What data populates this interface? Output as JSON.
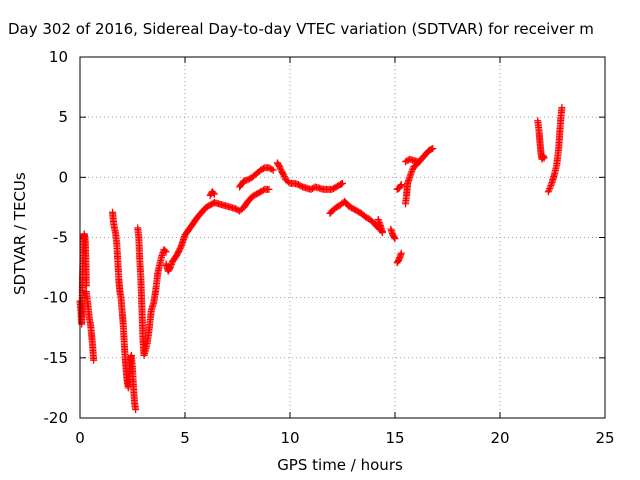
{
  "chart_data": {
    "type": "scatter",
    "title": "Day 302 of 2016, Sidereal Day-to-day VTEC variation (SDTVAR) for receiver m",
    "xlabel": "GPS time / hours",
    "ylabel": "SDTVAR / TECUs",
    "xlim": [
      0,
      25
    ],
    "ylim": [
      -20,
      10
    ],
    "xticks": [
      0,
      5,
      10,
      15,
      20,
      25
    ],
    "yticks": [
      -20,
      -15,
      -10,
      -5,
      0,
      5,
      10
    ],
    "grid": true,
    "marker": "plus",
    "color": "#ff0000",
    "series": [
      {
        "segments": [
          [
            [
              0.0,
              -10.3
            ],
            [
              0.05,
              -11.2
            ],
            [
              0.08,
              -12.2
            ],
            [
              0.1,
              -10.5
            ],
            [
              0.12,
              -8.2
            ],
            [
              0.15,
              -6.5
            ],
            [
              0.18,
              -5.2
            ],
            [
              0.2,
              -4.7
            ],
            [
              0.22,
              -4.9
            ],
            [
              0.25,
              -5.3
            ],
            [
              0.28,
              -7.0
            ],
            [
              0.3,
              -9.0
            ]
          ],
          [
            [
              0.3,
              -9.5
            ],
            [
              0.35,
              -10.2
            ],
            [
              0.4,
              -11.0
            ],
            [
              0.45,
              -11.8
            ],
            [
              0.5,
              -12.2
            ],
            [
              0.55,
              -13.0
            ],
            [
              0.6,
              -14.0
            ],
            [
              0.65,
              -15.2
            ]
          ],
          [
            [
              1.55,
              -2.9
            ],
            [
              1.6,
              -3.8
            ],
            [
              1.65,
              -4.3
            ],
            [
              1.7,
              -4.7
            ],
            [
              1.75,
              -5.5
            ],
            [
              1.8,
              -7.0
            ],
            [
              1.85,
              -8.5
            ],
            [
              1.9,
              -9.5
            ],
            [
              1.95,
              -10.0
            ],
            [
              2.0,
              -11.0
            ],
            [
              2.05,
              -12.0
            ],
            [
              2.1,
              -13.5
            ],
            [
              2.15,
              -15.0
            ],
            [
              2.2,
              -16.0
            ],
            [
              2.25,
              -17.0
            ],
            [
              2.3,
              -17.5
            ],
            [
              2.35,
              -16.8
            ],
            [
              2.4,
              -15.0
            ],
            [
              2.45,
              -14.8
            ],
            [
              2.5,
              -16.0
            ],
            [
              2.55,
              -17.5
            ],
            [
              2.6,
              -18.8
            ],
            [
              2.65,
              -19.3
            ]
          ],
          [
            [
              2.75,
              -4.2
            ],
            [
              2.8,
              -5.0
            ],
            [
              2.85,
              -7.0
            ],
            [
              2.9,
              -8.5
            ],
            [
              2.95,
              -11.0
            ],
            [
              3.0,
              -13.5
            ],
            [
              3.05,
              -14.8
            ],
            [
              3.1,
              -14.5
            ],
            [
              3.2,
              -13.8
            ],
            [
              3.3,
              -12.5
            ],
            [
              3.4,
              -11.0
            ],
            [
              3.5,
              -10.5
            ],
            [
              3.6,
              -9.5
            ],
            [
              3.7,
              -8.0
            ],
            [
              3.8,
              -7.2
            ],
            [
              3.9,
              -6.5
            ],
            [
              4.0,
              -6.0
            ],
            [
              4.1,
              -6.2
            ]
          ],
          [
            [
              4.1,
              -7.2
            ],
            [
              4.2,
              -7.8
            ],
            [
              4.3,
              -7.5
            ],
            [
              4.4,
              -7.0
            ],
            [
              4.6,
              -6.5
            ],
            [
              4.8,
              -5.8
            ],
            [
              5.0,
              -4.8
            ],
            [
              5.2,
              -4.3
            ],
            [
              5.4,
              -3.8
            ],
            [
              5.6,
              -3.3
            ],
            [
              5.8,
              -2.9
            ],
            [
              6.0,
              -2.5
            ],
            [
              6.2,
              -2.3
            ],
            [
              6.4,
              -2.1
            ]
          ],
          [
            [
              6.2,
              -1.5
            ],
            [
              6.3,
              -1.2
            ],
            [
              6.4,
              -1.4
            ]
          ],
          [
            [
              6.4,
              -2.1
            ],
            [
              6.6,
              -2.2
            ],
            [
              6.8,
              -2.3
            ],
            [
              7.0,
              -2.4
            ],
            [
              7.2,
              -2.5
            ],
            [
              7.4,
              -2.6
            ],
            [
              7.6,
              -2.8
            ],
            [
              7.8,
              -2.5
            ],
            [
              8.0,
              -2.0
            ],
            [
              8.2,
              -1.6
            ],
            [
              8.4,
              -1.4
            ],
            [
              8.6,
              -1.2
            ],
            [
              8.8,
              -1.0
            ],
            [
              9.0,
              -1.0
            ]
          ],
          [
            [
              7.6,
              -0.8
            ],
            [
              7.8,
              -0.3
            ],
            [
              8.0,
              -0.2
            ],
            [
              8.2,
              0.0
            ],
            [
              8.4,
              0.3
            ],
            [
              8.6,
              0.6
            ],
            [
              8.8,
              0.8
            ],
            [
              9.0,
              0.8
            ],
            [
              9.2,
              0.6
            ]
          ],
          [
            [
              9.4,
              1.2
            ],
            [
              9.5,
              0.9
            ],
            [
              9.6,
              0.5
            ],
            [
              9.7,
              0.2
            ],
            [
              9.8,
              -0.2
            ],
            [
              10.0,
              -0.5
            ],
            [
              10.2,
              -0.5
            ],
            [
              10.4,
              -0.6
            ],
            [
              10.6,
              -0.8
            ],
            [
              10.8,
              -0.9
            ],
            [
              11.0,
              -1.0
            ],
            [
              11.2,
              -0.8
            ],
            [
              11.4,
              -0.9
            ],
            [
              11.6,
              -1.0
            ],
            [
              11.8,
              -1.0
            ],
            [
              12.0,
              -1.0
            ],
            [
              12.2,
              -0.8
            ],
            [
              12.4,
              -0.6
            ],
            [
              12.5,
              -0.5
            ]
          ],
          [
            [
              11.9,
              -3.0
            ],
            [
              12.0,
              -2.8
            ],
            [
              12.2,
              -2.5
            ],
            [
              12.4,
              -2.3
            ],
            [
              12.6,
              -2.0
            ],
            [
              12.8,
              -2.4
            ],
            [
              13.0,
              -2.6
            ],
            [
              13.2,
              -2.8
            ],
            [
              13.4,
              -3.0
            ],
            [
              13.6,
              -3.3
            ],
            [
              13.8,
              -3.5
            ],
            [
              14.0,
              -3.8
            ],
            [
              14.2,
              -4.2
            ],
            [
              14.4,
              -4.5
            ]
          ],
          [
            [
              14.2,
              -3.5
            ],
            [
              14.3,
              -4.0
            ],
            [
              14.4,
              -4.6
            ]
          ],
          [
            [
              14.8,
              -4.3
            ],
            [
              14.9,
              -4.8
            ],
            [
              15.0,
              -5.1
            ]
          ],
          [
            [
              15.1,
              -7.1
            ],
            [
              15.2,
              -6.8
            ],
            [
              15.3,
              -6.3
            ]
          ],
          [
            [
              15.1,
              -1.0
            ],
            [
              15.2,
              -0.9
            ],
            [
              15.3,
              -0.6
            ]
          ],
          [
            [
              15.5,
              -2.2
            ],
            [
              15.55,
              -1.5
            ],
            [
              15.6,
              -0.5
            ],
            [
              15.7,
              0.0
            ],
            [
              15.8,
              0.5
            ],
            [
              15.9,
              0.9
            ],
            [
              16.0,
              1.0
            ],
            [
              16.1,
              1.2
            ],
            [
              16.2,
              1.4
            ],
            [
              16.3,
              1.6
            ],
            [
              16.4,
              1.8
            ],
            [
              16.5,
              2.0
            ],
            [
              16.6,
              2.2
            ],
            [
              16.7,
              2.3
            ],
            [
              16.8,
              2.4
            ]
          ],
          [
            [
              15.5,
              1.3
            ],
            [
              15.7,
              1.5
            ],
            [
              15.9,
              1.4
            ],
            [
              16.1,
              1.3
            ]
          ],
          [
            [
              21.8,
              4.7
            ],
            [
              21.85,
              4.0
            ],
            [
              21.9,
              3.0
            ],
            [
              21.95,
              2.0
            ],
            [
              22.0,
              1.5
            ],
            [
              22.05,
              1.8
            ],
            [
              22.1,
              1.6
            ]
          ],
          [
            [
              22.3,
              -1.2
            ],
            [
              22.4,
              -0.8
            ],
            [
              22.5,
              -0.3
            ],
            [
              22.6,
              0.3
            ],
            [
              22.7,
              1.0
            ],
            [
              22.8,
              2.5
            ],
            [
              22.85,
              3.8
            ],
            [
              22.9,
              5.0
            ],
            [
              22.95,
              5.8
            ]
          ]
        ]
      }
    ]
  }
}
